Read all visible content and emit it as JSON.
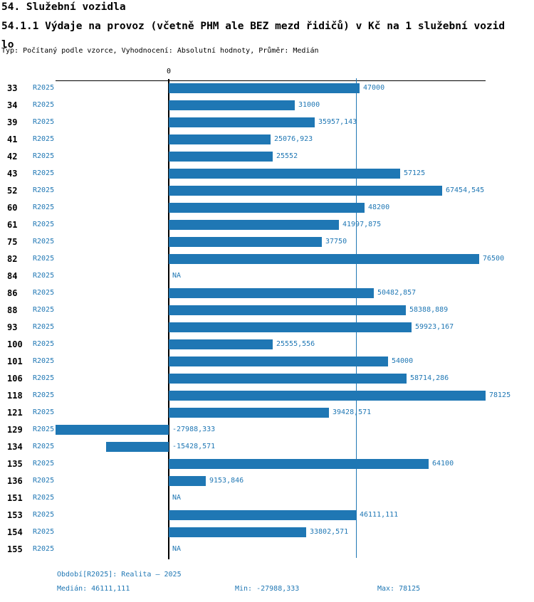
{
  "header": {
    "title": "54. Služební vozidla",
    "subtitle": "54.1.1 Výdaje na provoz (včetně PHM ale BEZ mezd řidičů) v Kč na 1 služební vozidlo",
    "meta": "Typ: Počítaný podle vzorce, Vyhodnocení: Absolutní hodnoty, Průměr: Medián"
  },
  "chart_data": {
    "type": "bar",
    "orientation": "horizontal",
    "zero_label": "0",
    "series_name": "R2025",
    "xmin": -27988.333,
    "xmax": 78125,
    "median": 46111.111,
    "bar_color": "#1f77b4",
    "axis_color": "#000000",
    "median_line": true,
    "rows": [
      {
        "id": "33",
        "series": "R2025",
        "value": 47000,
        "label": "47000"
      },
      {
        "id": "34",
        "series": "R2025",
        "value": 31000,
        "label": "31000"
      },
      {
        "id": "39",
        "series": "R2025",
        "value": 35957.143,
        "label": "35957,143"
      },
      {
        "id": "41",
        "series": "R2025",
        "value": 25076.923,
        "label": "25076,923"
      },
      {
        "id": "42",
        "series": "R2025",
        "value": 25552,
        "label": "25552"
      },
      {
        "id": "43",
        "series": "R2025",
        "value": 57125,
        "label": "57125"
      },
      {
        "id": "52",
        "series": "R2025",
        "value": 67454.545,
        "label": "67454,545"
      },
      {
        "id": "60",
        "series": "R2025",
        "value": 48200,
        "label": "48200"
      },
      {
        "id": "61",
        "series": "R2025",
        "value": 41997.875,
        "label": "41997,875"
      },
      {
        "id": "75",
        "series": "R2025",
        "value": 37750,
        "label": "37750"
      },
      {
        "id": "82",
        "series": "R2025",
        "value": 76500,
        "label": "76500"
      },
      {
        "id": "84",
        "series": "R2025",
        "value": null,
        "label": "NA"
      },
      {
        "id": "86",
        "series": "R2025",
        "value": 50482.857,
        "label": "50482,857"
      },
      {
        "id": "88",
        "series": "R2025",
        "value": 58388.889,
        "label": "58388,889"
      },
      {
        "id": "93",
        "series": "R2025",
        "value": 59923.167,
        "label": "59923,167"
      },
      {
        "id": "100",
        "series": "R2025",
        "value": 25555.556,
        "label": "25555,556"
      },
      {
        "id": "101",
        "series": "R2025",
        "value": 54000,
        "label": "54000"
      },
      {
        "id": "106",
        "series": "R2025",
        "value": 58714.286,
        "label": "58714,286"
      },
      {
        "id": "118",
        "series": "R2025",
        "value": 78125,
        "label": "78125"
      },
      {
        "id": "121",
        "series": "R2025",
        "value": 39428.571,
        "label": "39428,571"
      },
      {
        "id": "129",
        "series": "R2025",
        "value": -27988.333,
        "label": "-27988,333"
      },
      {
        "id": "134",
        "series": "R2025",
        "value": -15428.571,
        "label": "-15428,571"
      },
      {
        "id": "135",
        "series": "R2025",
        "value": 64100,
        "label": "64100"
      },
      {
        "id": "136",
        "series": "R2025",
        "value": 9153.846,
        "label": "9153,846"
      },
      {
        "id": "151",
        "series": "R2025",
        "value": null,
        "label": "NA"
      },
      {
        "id": "153",
        "series": "R2025",
        "value": 46111.111,
        "label": "46111,111"
      },
      {
        "id": "154",
        "series": "R2025",
        "value": 33802.571,
        "label": "33802,571"
      },
      {
        "id": "155",
        "series": "R2025",
        "value": null,
        "label": "NA"
      }
    ]
  },
  "footer": {
    "period": "Období[R2025]: Realita – 2025",
    "median": "Medián: 46111,111",
    "min": "Min: -27988,333",
    "max": "Max: 78125"
  }
}
